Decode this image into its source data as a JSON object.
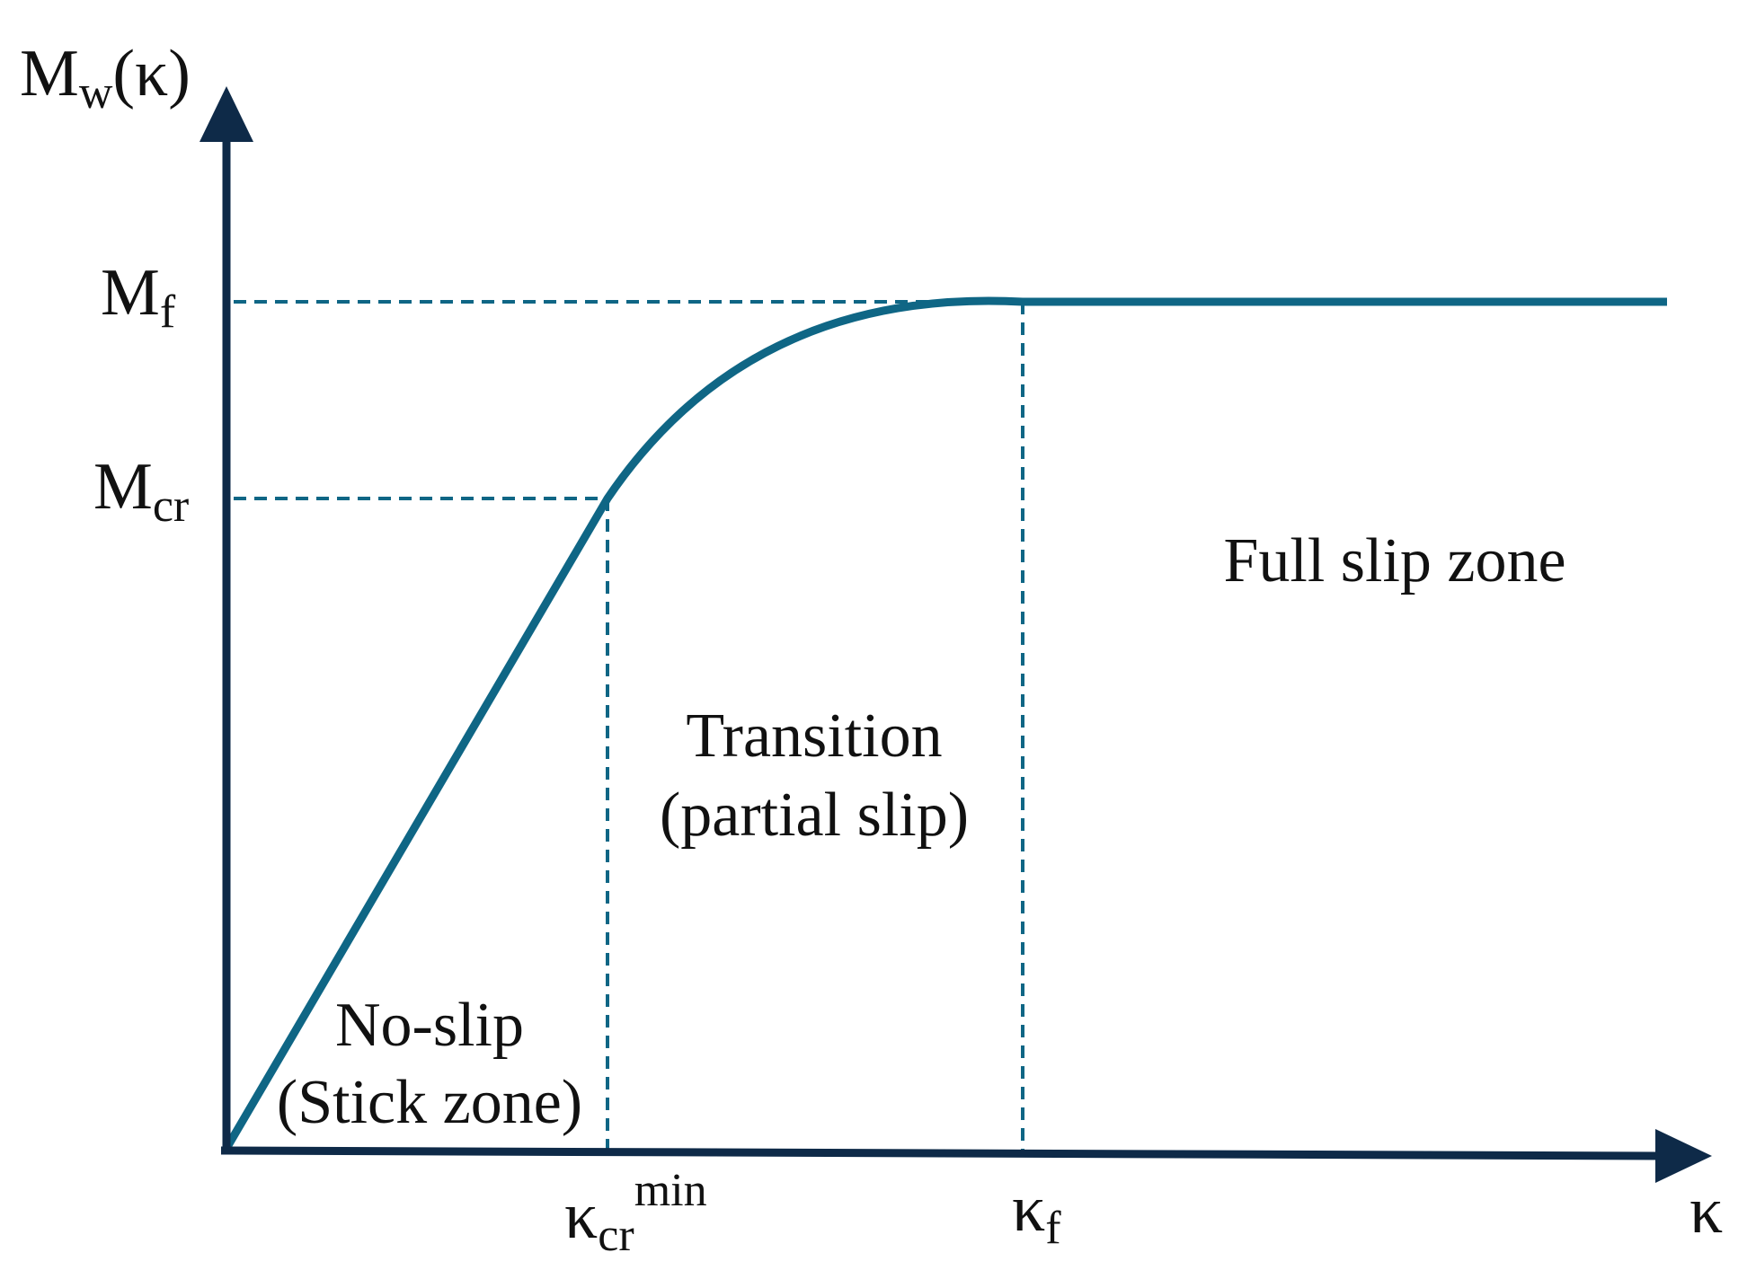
{
  "y_axis": {
    "main": "M",
    "sub": "w",
    "suffix": "(κ)"
  },
  "x_axis": {
    "label": "κ"
  },
  "y_ticks": {
    "mf": {
      "main": "M",
      "sub": "f"
    },
    "mcr": {
      "main": "M",
      "sub": "cr"
    }
  },
  "x_ticks": {
    "kcr": {
      "main": "κ",
      "sub": "cr",
      "sup": "min"
    },
    "kf": {
      "main": "κ",
      "sub": "f"
    }
  },
  "zones": {
    "no_slip": {
      "line1": "No-slip",
      "line2": "(Stick zone)"
    },
    "transition": {
      "line1": "Transition",
      "line2": "(partial slip)"
    },
    "full_slip": {
      "line1": "Full slip zone"
    }
  },
  "colors": {
    "curve": "#0f6685",
    "axis": "#0e2a48",
    "text": "#111111"
  }
}
